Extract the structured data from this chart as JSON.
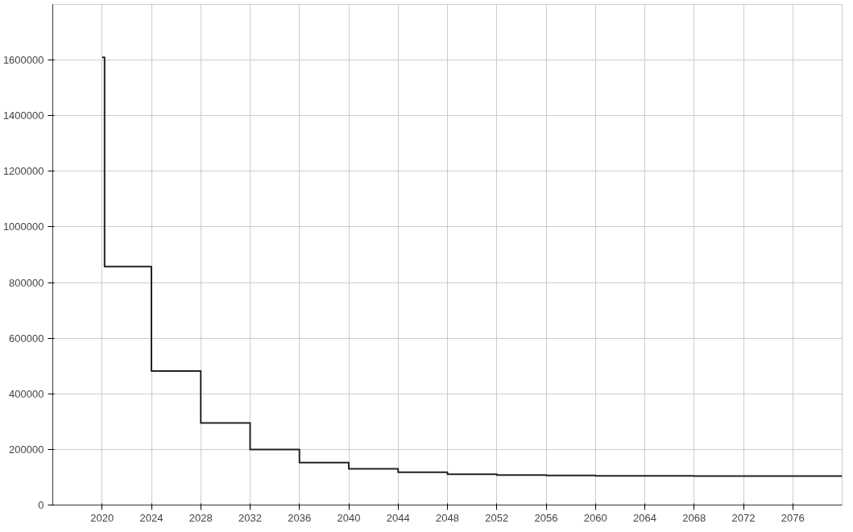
{
  "chart_data": {
    "type": "step",
    "x": [
      2020,
      2020.2,
      2024,
      2028,
      2032,
      2036,
      2040,
      2044,
      2048,
      2052,
      2056,
      2060,
      2064,
      2068,
      2072,
      2076,
      2080
    ],
    "series": [
      {
        "color": "#222222",
        "values": [
          1610000,
          857000,
          482000,
          295000,
          200000,
          153000,
          130000,
          118000,
          111000,
          108000,
          106000,
          105000,
          105000,
          104000,
          104000,
          104000,
          104000
        ]
      }
    ],
    "xlim": [
      2016,
      2080
    ],
    "ylim": [
      0,
      1800000
    ],
    "xticks": [
      2020,
      2024,
      2028,
      2032,
      2036,
      2040,
      2044,
      2048,
      2052,
      2056,
      2060,
      2064,
      2068,
      2072,
      2076
    ],
    "yticks": [
      0,
      200000,
      400000,
      600000,
      800000,
      1000000,
      1200000,
      1400000,
      1600000
    ],
    "grid": true,
    "marker": "none",
    "line_style": "solid"
  }
}
